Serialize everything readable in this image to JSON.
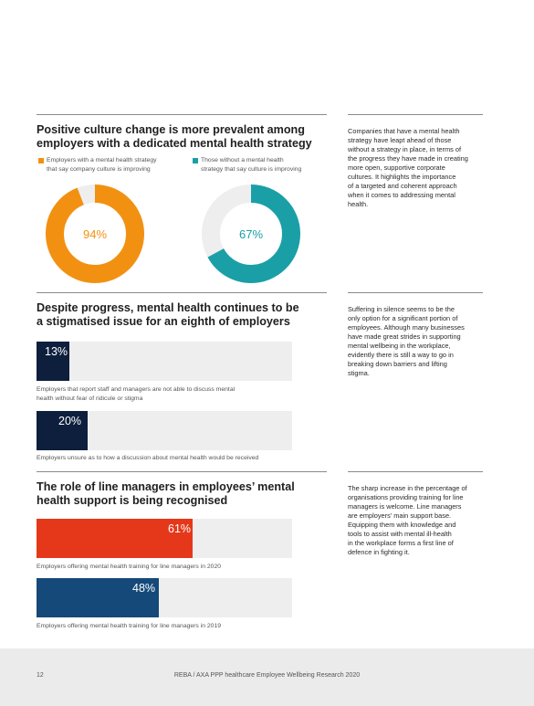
{
  "colors": {
    "orange": "#f29111",
    "teal": "#1a9fa7",
    "navy": "#0d1f3c",
    "red": "#e5381a",
    "blue": "#15497a",
    "track": "#efeeee"
  },
  "section1": {
    "heading_line1": "Positive culture change is more prevalent among",
    "heading_line2": "employers with a dedicated mental health strategy",
    "legend_a_line1": "Employers with a mental health strategy",
    "legend_a_line2": "that say company culture is improving",
    "legend_b_line1": "Those without a mental health",
    "legend_b_line2": "strategy that say culture is improving",
    "side_text": [
      "Companies that have a mental health",
      "strategy have leapt ahead of those",
      "without a strategy in place, in terms of",
      "the progress they have made in creating",
      "more open, supportive corporate",
      "cultures. It highlights the importance",
      "of a targeted and coherent approach",
      "when it comes to addressing mental",
      "health."
    ]
  },
  "section2": {
    "heading_line1": "Despite progress, mental health continues to be",
    "heading_line2": "a stigmatised issue for an eighth of employers",
    "bar1_label": "13%",
    "bar1_caption_line1": "Employers that report staff and managers are not able to discuss mental",
    "bar1_caption_line2": "health without fear of ridicule or stigma",
    "bar2_label": "20%",
    "bar2_caption": "Employers unsure as to how a discussion about mental health would be received",
    "side_text": [
      "Suffering in silence seems to be the",
      "only option for a significant portion of",
      "employees. Although many businesses",
      "have made great strides in supporting",
      "mental wellbeing in the workplace,",
      "evidently there is still a way to go in",
      "breaking down barriers and lifting",
      "stigma."
    ]
  },
  "section3": {
    "heading_line1": "The role of line managers in employees’ mental",
    "heading_line2": "health support is being recognised",
    "bar1_label": "61%",
    "bar1_caption": "Employers offering mental health training for line managers in 2020",
    "bar2_label": "48%",
    "bar2_caption": "Employers offering mental health training for line managers in 2019",
    "side_text": [
      "The sharp increase in the percentage of",
      "organisations providing training for line",
      "managers is welcome. Line managers",
      "are employers’ main support base.",
      "Equipping them with knowledge and",
      "tools to assist with mental ill-health",
      "in the workplace forms a first line of",
      "defence in fighting it."
    ]
  },
  "chart_data": [
    {
      "type": "pie",
      "series": [
        {
          "name": "Employers with a mental health strategy that say company culture is improving",
          "label": "94%",
          "value": 94,
          "color": "#f29111"
        },
        {
          "name": "Those without a mental health strategy that say culture is improving",
          "label": "67%",
          "value": 67,
          "color": "#1a9fa7"
        }
      ]
    },
    {
      "type": "bar",
      "categories": [
        "Employers that report staff and managers are not able to discuss mental health without fear of ridicule or stigma",
        "Employers unsure as to how a discussion about mental health would be received"
      ],
      "values": [
        13,
        20
      ],
      "ylim": [
        0,
        100
      ],
      "color": "#0d1f3c"
    },
    {
      "type": "bar",
      "categories": [
        "Employers offering mental health training for line managers in 2020",
        "Employers offering mental health training for line managers in 2019"
      ],
      "values": [
        61,
        48
      ],
      "ylim": [
        0,
        100
      ],
      "colors": [
        "#e5381a",
        "#15497a"
      ]
    }
  ],
  "footer": {
    "page_number": "12",
    "title": "REBA / AXA PPP healthcare Employee Wellbeing Research 2020"
  }
}
